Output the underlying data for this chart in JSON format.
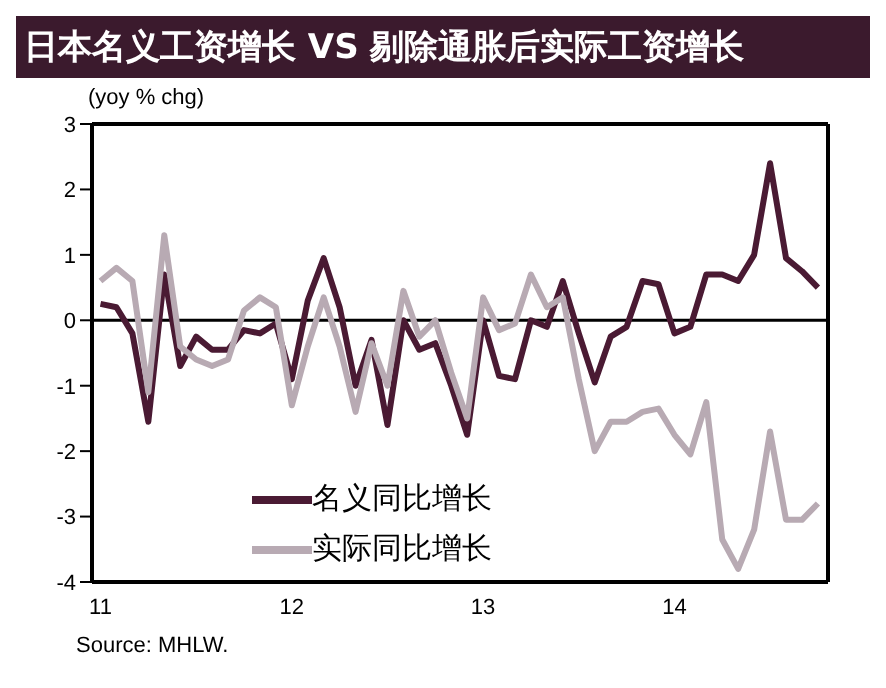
{
  "chart_data": {
    "type": "line",
    "title": "日本名义工资增长 VS 剔除通胀后实际工资增长",
    "ylabel": "(yoy % chg)",
    "annotations": [
      "Source: MHLW."
    ],
    "x": [
      "2011-01",
      "2011-02",
      "2011-03",
      "2011-04",
      "2011-05",
      "2011-06",
      "2011-07",
      "2011-08",
      "2011-09",
      "2011-10",
      "2011-11",
      "2011-12",
      "2012-01",
      "2012-02",
      "2012-03",
      "2012-04",
      "2012-05",
      "2012-06",
      "2012-07",
      "2012-08",
      "2012-09",
      "2012-10",
      "2012-11",
      "2012-12",
      "2013-01",
      "2013-02",
      "2013-03",
      "2013-04",
      "2013-05",
      "2013-06",
      "2013-07",
      "2013-08",
      "2013-09",
      "2013-10",
      "2013-11",
      "2013-12",
      "2014-01",
      "2014-02",
      "2014-03",
      "2014-04",
      "2014-05",
      "2014-06",
      "2014-07",
      "2014-08",
      "2014-09",
      "2014-10"
    ],
    "series": [
      {
        "name": "名义同比增长",
        "color": "#4a1a33",
        "values": [
          0.25,
          0.2,
          -0.2,
          -1.55,
          0.7,
          -0.7,
          -0.25,
          -0.45,
          -0.45,
          -0.15,
          -0.2,
          -0.05,
          -0.9,
          0.3,
          0.95,
          0.2,
          -1.0,
          -0.3,
          -1.6,
          0.0,
          -0.45,
          -0.35,
          -1.0,
          -1.75,
          0.0,
          -0.85,
          -0.9,
          0.0,
          -0.1,
          0.6,
          -0.2,
          -0.95,
          -0.25,
          -0.1,
          0.6,
          0.55,
          -0.2,
          -0.1,
          0.7,
          0.7,
          0.6,
          1.0,
          2.4,
          0.95,
          0.75,
          0.5
        ]
      },
      {
        "name": "实际同比增长",
        "color": "#b8aab3",
        "values": [
          0.6,
          0.8,
          0.6,
          -1.1,
          1.3,
          -0.4,
          -0.6,
          -0.7,
          -0.6,
          0.15,
          0.35,
          0.2,
          -1.3,
          -0.4,
          0.35,
          -0.4,
          -1.4,
          -0.35,
          -1.0,
          0.45,
          -0.25,
          0.0,
          -0.8,
          -1.5,
          0.35,
          -0.15,
          -0.05,
          0.7,
          0.2,
          0.35,
          -0.9,
          -2.0,
          -1.55,
          -1.55,
          -1.4,
          -1.35,
          -1.75,
          -2.05,
          -1.25,
          -3.35,
          -3.8,
          -3.2,
          -1.7,
          -3.05,
          -3.05,
          -2.8
        ]
      }
    ],
    "xlim": [
      "2010-12-15",
      "2014-10-20"
    ],
    "xticks": [
      {
        "value": "2011-01",
        "label": "11"
      },
      {
        "value": "2012-01",
        "label": "12"
      },
      {
        "value": "2013-01",
        "label": "13"
      },
      {
        "value": "2014-01",
        "label": "14"
      }
    ],
    "ylim": [
      -4,
      3
    ],
    "yticks": [
      -4,
      -3,
      -2,
      -1,
      0,
      1,
      2,
      3
    ],
    "ref_lines": [
      {
        "axis": "y",
        "value": 0,
        "color": "#000000"
      }
    ],
    "grid": false,
    "legend": "bottom left",
    "marker": "none",
    "line_style": "solid"
  }
}
